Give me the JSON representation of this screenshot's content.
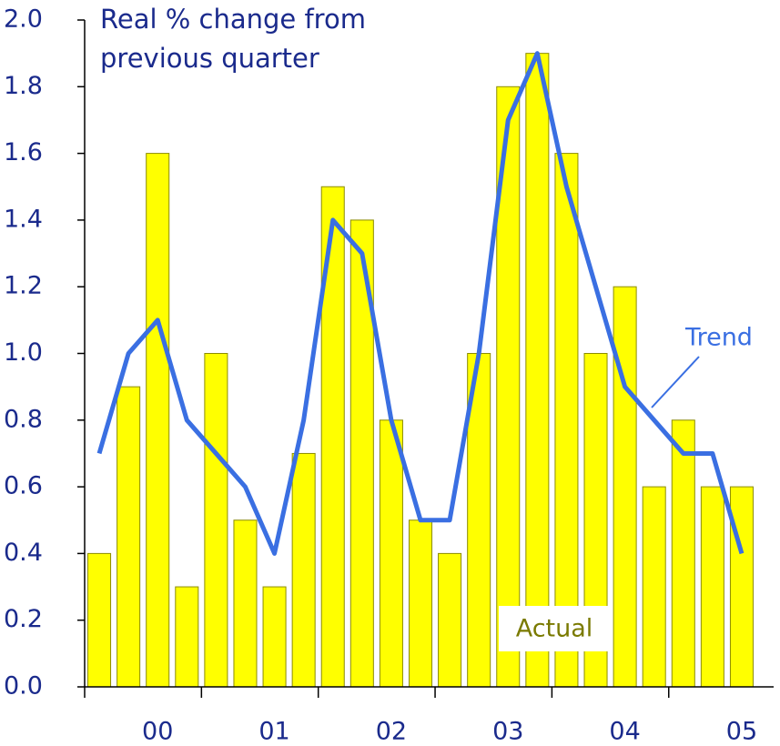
{
  "chart_data": {
    "type": "bar_line",
    "title": "Real % change from previous quarter",
    "title_lines": [
      "Real % change from",
      "previous quarter"
    ],
    "categories": [
      null,
      null,
      "00",
      null,
      null,
      null,
      "01",
      null,
      null,
      null,
      "02",
      null,
      null,
      null,
      "03",
      null,
      null,
      null,
      "04",
      null,
      null,
      null,
      "05"
    ],
    "series": [
      {
        "name": "Actual",
        "type": "bar",
        "color": "#ffff00",
        "values": [
          0.4,
          0.9,
          1.6,
          0.3,
          1.0,
          0.5,
          0.3,
          0.7,
          1.5,
          1.4,
          0.8,
          0.5,
          0.4,
          1.0,
          1.8,
          1.9,
          1.6,
          1.0,
          1.2,
          0.6,
          0.8,
          0.6,
          0.6
        ]
      },
      {
        "name": "Trend",
        "type": "line",
        "color": "#3a6fe2",
        "values": [
          0.7,
          1.0,
          1.1,
          0.8,
          0.7,
          0.6,
          0.4,
          0.8,
          1.4,
          1.3,
          0.8,
          0.5,
          0.5,
          1.0,
          1.7,
          1.9,
          1.5,
          1.2,
          0.9,
          0.8,
          0.7,
          0.7,
          0.4
        ]
      }
    ],
    "ylim": [
      0,
      2.0
    ],
    "yticks": [
      {
        "value": 0,
        "label": "0.0"
      },
      {
        "value": 0.2,
        "label": "0.2"
      },
      {
        "value": 0.4,
        "label": "0.4"
      },
      {
        "value": 0.6,
        "label": "0.6"
      },
      {
        "value": 0.8,
        "label": "0.8"
      },
      {
        "value": 1.0,
        "label": "1.0"
      },
      {
        "value": 1.2,
        "label": "1.2"
      },
      {
        "value": 1.4,
        "label": "1.4"
      },
      {
        "value": 1.6,
        "label": "1.6"
      },
      {
        "value": 1.8,
        "label": "1.8"
      },
      {
        "value": 2.0,
        "label": "2.0"
      }
    ],
    "grid": false
  }
}
